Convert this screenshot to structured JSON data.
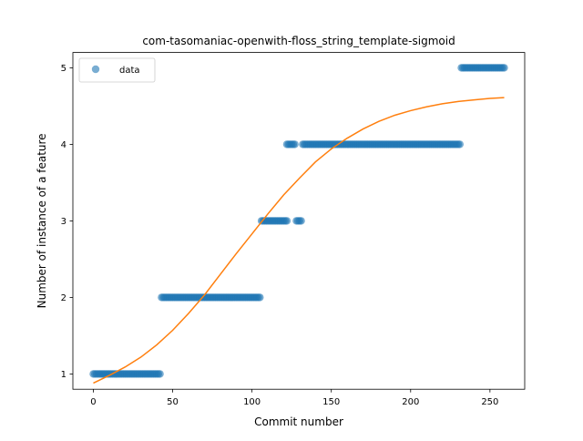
{
  "chart_data": {
    "type": "scatter",
    "title": "com-tasomaniac-openwith-floss_string_template-sigmoid",
    "xlabel": "Commit number",
    "ylabel": "Number of instance of a feature",
    "xlim": [
      -12.9,
      271.9
    ],
    "ylim": [
      0.8,
      5.2
    ],
    "x_ticks": [
      "0",
      "50",
      "100",
      "150",
      "200",
      "250"
    ],
    "x_tick_values": [
      0,
      50,
      100,
      150,
      200,
      250
    ],
    "y_ticks": [
      "1",
      "2",
      "3",
      "4",
      "5"
    ],
    "y_tick_values": [
      1,
      2,
      3,
      4,
      5
    ],
    "legend": {
      "position": "upper left",
      "entries": [
        "data"
      ]
    },
    "colors": {
      "data": "#1f77b4",
      "fit": "#ff7f0e"
    },
    "series": [
      {
        "name": "data",
        "kind": "scatter",
        "runs": [
          {
            "x_from": 0,
            "x_to": 42,
            "y": 1
          },
          {
            "x_from": 43,
            "x_to": 105,
            "y": 2
          },
          {
            "x_from": 106,
            "x_to": 122,
            "y": 3
          },
          {
            "x_from": 122,
            "x_to": 127,
            "y": 4
          },
          {
            "x_from": 128,
            "x_to": 131,
            "y": 3
          },
          {
            "x_from": 132,
            "x_to": 231,
            "y": 4
          },
          {
            "x_from": 232,
            "x_to": 259,
            "y": 5
          }
        ]
      },
      {
        "kind": "line",
        "x": [
          0,
          10,
          20,
          30,
          40,
          50,
          60,
          70,
          80,
          90,
          100,
          110,
          120,
          130,
          140,
          150,
          160,
          170,
          180,
          190,
          200,
          210,
          220,
          230,
          240,
          250,
          259
        ],
        "y": [
          0.88,
          0.98,
          1.09,
          1.22,
          1.38,
          1.57,
          1.79,
          2.03,
          2.3,
          2.57,
          2.83,
          3.09,
          3.34,
          3.56,
          3.77,
          3.94,
          4.08,
          4.2,
          4.3,
          4.38,
          4.44,
          4.49,
          4.53,
          4.56,
          4.58,
          4.6,
          4.61
        ]
      }
    ]
  }
}
